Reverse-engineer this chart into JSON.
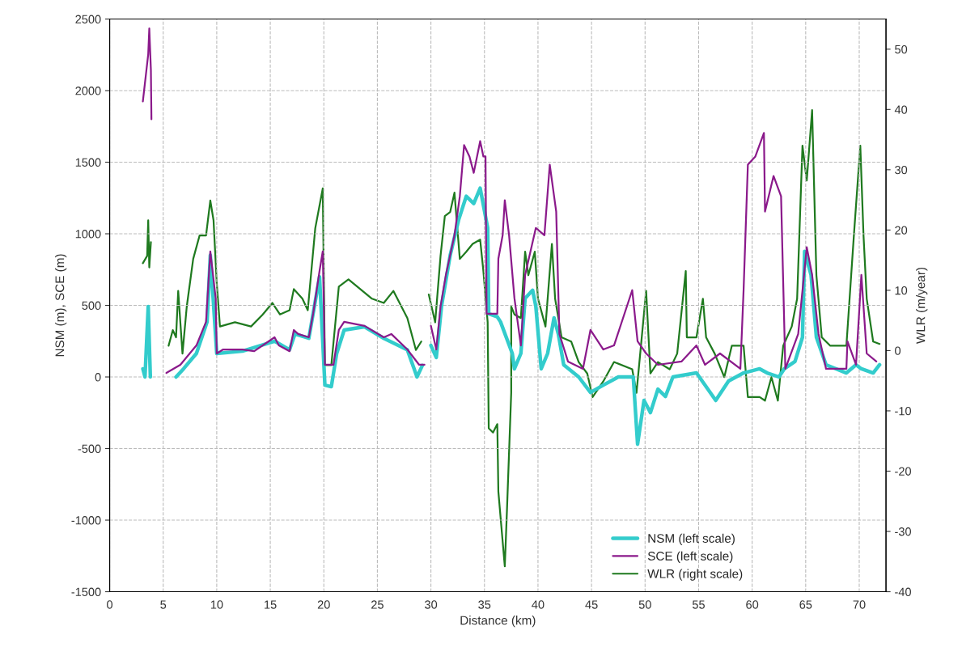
{
  "chart_data": {
    "type": "line",
    "xlabel": "Distance (km)",
    "ylabel": "NSM (m), SCE (m)",
    "y2label": "WLR (m/year)",
    "xlim": [
      0,
      72.5
    ],
    "xticks": [
      0,
      5,
      10,
      15,
      20,
      25,
      30,
      35,
      40,
      45,
      50,
      55,
      60,
      65,
      70
    ],
    "ylim": [
      -1500,
      2500
    ],
    "yticks": [
      -1500,
      -1000,
      -500,
      0,
      500,
      1000,
      1500,
      2000,
      2500
    ],
    "y2lim": [
      -40,
      55
    ],
    "y2ticks": [
      -40,
      -30,
      -20,
      -10,
      0,
      10,
      20,
      30,
      40,
      50
    ],
    "grid": true,
    "legend": "bottom right",
    "series": [
      {
        "name": "NSM (left scale)",
        "color": "#33cccc",
        "axis": "y",
        "x": [
          3.1,
          3.3,
          3.6,
          3.8,
          4.5,
          6.2,
          6.9,
          8.1,
          9.1,
          9.4,
          10.0,
          12.4,
          15.4,
          16.8,
          17.3,
          18.6,
          19.6,
          20.1,
          20.7,
          21.2,
          21.9,
          23.8,
          25.6,
          27.8,
          28.7,
          29.2,
          29.6,
          30.0,
          30.5,
          31.0,
          31.8,
          32.6,
          33.3,
          34.0,
          34.6,
          35.3,
          35.4,
          36.2,
          36.5,
          37.6,
          37.8,
          38.4,
          38.8,
          39.5,
          39.8,
          40.3,
          40.9,
          41.5,
          41.9,
          42.4,
          43.8,
          44.9,
          46.1,
          47.5,
          48.9,
          49.3,
          49.9,
          50.5,
          51.2,
          51.9,
          52.6,
          54.8,
          56.6,
          57.8,
          59.2,
          60.7,
          61.4,
          62.5,
          63.0,
          64.0,
          64.7,
          64.9,
          65.5,
          66.0,
          66.9,
          68.8,
          69.7,
          70.2,
          71.3,
          71.9
        ],
        "values": [
          57,
          0,
          492,
          0,
          null,
          0,
          57,
          164,
          385,
          850,
          164,
          180,
          250,
          190,
          300,
          270,
          700,
          -57,
          -68,
          164,
          328,
          350,
          270,
          190,
          0,
          80,
          null,
          220,
          136,
          500,
          850,
          1100,
          1262,
          1211,
          1319,
          1041,
          441,
          420,
          385,
          164,
          57,
          164,
          550,
          606,
          492,
          57,
          164,
          413,
          300,
          85,
          0,
          -108,
          -57,
          0,
          0,
          -470,
          -164,
          -249,
          -85,
          -136,
          0,
          28,
          -164,
          -28,
          28,
          57,
          28,
          0,
          57,
          108,
          277,
          877,
          713,
          277,
          85,
          28,
          85,
          57,
          28,
          85
        ]
      },
      {
        "name": "SCE (left scale)",
        "color": "#8b1a8b",
        "axis": "y",
        "x": [
          3.1,
          3.6,
          3.7,
          3.85,
          3.9,
          4.5,
          5.3,
          6.6,
          8.1,
          9.0,
          9.4,
          9.9,
          10.0,
          10.6,
          12.4,
          13.5,
          15.4,
          15.8,
          16.8,
          17.2,
          17.6,
          18.6,
          19.0,
          19.6,
          19.9,
          20.1,
          20.9,
          21.4,
          21.9,
          23.8,
          25.6,
          26.3,
          27.8,
          28.9,
          29.4,
          29.7,
          30.0,
          30.5,
          30.9,
          31.4,
          32.2,
          32.7,
          33.1,
          33.6,
          34.0,
          34.6,
          34.9,
          35.1,
          35.2,
          36.2,
          36.3,
          36.7,
          36.9,
          37.3,
          37.8,
          38.4,
          38.8,
          39.8,
          40.6,
          41.1,
          41.7,
          42.0,
          42.8,
          44.2,
          44.9,
          46.1,
          47.1,
          48.8,
          49.3,
          50.1,
          51.2,
          53.4,
          54.8,
          55.6,
          57.0,
          58.9,
          59.2,
          59.6,
          60.3,
          61.1,
          61.2,
          62.0,
          62.7,
          63.1,
          64.3,
          65.1,
          65.6,
          66.2,
          66.9,
          68.8,
          68.9,
          69.7,
          70.2,
          70.7,
          71.6
        ],
        "values": [
          1925,
          2253,
          2434,
          2145,
          1800,
          null,
          28,
          85,
          220,
          385,
          877,
          550,
          164,
          192,
          192,
          180,
          277,
          220,
          180,
          328,
          300,
          277,
          441,
          741,
          877,
          85,
          85,
          328,
          385,
          357,
          277,
          300,
          192,
          85,
          85,
          null,
          357,
          192,
          492,
          713,
          990,
          1262,
          1619,
          1540,
          1426,
          1647,
          1540,
          1540,
          441,
          441,
          826,
          990,
          1234,
          990,
          550,
          220,
          713,
          1041,
          990,
          1483,
          1155,
          300,
          108,
          57,
          328,
          192,
          220,
          606,
          249,
          164,
          85,
          108,
          220,
          85,
          164,
          57,
          606,
          1483,
          1540,
          1704,
          1155,
          1404,
          1262,
          57,
          300,
          906,
          713,
          300,
          57,
          57,
          249,
          85,
          713,
          164,
          108
        ]
      },
      {
        "name": "WLR (right scale)",
        "color": "#1f7a1f",
        "axis": "y2",
        "x": [
          3.1,
          3.5,
          3.6,
          3.7,
          3.85,
          4.5,
          5.5,
          5.9,
          6.2,
          6.4,
          6.8,
          7.2,
          7.8,
          8.4,
          9.0,
          9.4,
          9.7,
          10.0,
          10.3,
          11.7,
          13.2,
          14.3,
          15.2,
          15.9,
          16.8,
          17.2,
          18.0,
          18.5,
          19.2,
          19.9,
          20.1,
          20.7,
          21.4,
          22.3,
          24.5,
          25.6,
          26.5,
          27.8,
          28.6,
          29.1,
          29.5,
          29.8,
          30.4,
          30.9,
          31.3,
          31.8,
          32.2,
          32.7,
          33.3,
          33.9,
          34.6,
          34.9,
          35.3,
          35.4,
          35.8,
          36.2,
          36.3,
          36.9,
          37.1,
          37.5,
          37.5,
          37.8,
          38.4,
          38.8,
          39.1,
          39.7,
          40.0,
          40.7,
          41.3,
          41.6,
          42.2,
          43.1,
          43.8,
          44.6,
          45.1,
          46.1,
          47.1,
          48.8,
          49.2,
          50.1,
          50.5,
          51.2,
          52.3,
          53.0,
          53.8,
          53.9,
          54.8,
          55.4,
          55.7,
          56.5,
          57.4,
          58.1,
          59.2,
          59.6,
          60.7,
          61.2,
          61.8,
          62.4,
          62.9,
          63.7,
          64.2,
          64.7,
          65.1,
          65.6,
          66.0,
          66.5,
          67.3,
          68.8,
          69.5,
          70.1,
          70.4,
          70.7,
          71.3,
          71.9
        ],
        "values": [
          14.5,
          15.7,
          21.6,
          13.8,
          18.0,
          null,
          0.8,
          3.4,
          2.2,
          9.9,
          -0.5,
          7.3,
          15.2,
          19.1,
          19.1,
          24.9,
          21.6,
          11.2,
          4.0,
          4.7,
          4.0,
          6.0,
          7.9,
          6.0,
          6.7,
          10.2,
          8.6,
          6.7,
          20.3,
          26.9,
          -2.4,
          -2.4,
          10.6,
          11.8,
          8.6,
          7.9,
          9.9,
          5.4,
          0.1,
          1.5,
          null,
          9.3,
          4.7,
          15.7,
          22.3,
          23.0,
          26.2,
          15.2,
          16.4,
          17.7,
          18.4,
          13.2,
          4.7,
          -12.9,
          -13.6,
          -12.2,
          -23.4,
          -35.8,
          -26.6,
          -7.0,
          7.3,
          6.0,
          5.4,
          16.4,
          12.5,
          16.4,
          8.6,
          4.0,
          17.7,
          8.6,
          2.2,
          1.5,
          -1.9,
          -3.8,
          -7.7,
          -5.1,
          -1.9,
          -3.1,
          -7.0,
          9.9,
          -3.8,
          -1.9,
          -3.1,
          -0.5,
          13.2,
          2.2,
          2.2,
          8.6,
          2.2,
          -0.5,
          -4.4,
          0.8,
          0.8,
          -7.7,
          -7.7,
          -8.3,
          -4.4,
          -8.3,
          0.8,
          4.0,
          8.6,
          34.0,
          28.2,
          39.9,
          12.5,
          2.2,
          0.8,
          0.8,
          19.1,
          34.0,
          19.1,
          8.6,
          1.5,
          1.1
        ]
      }
    ]
  }
}
